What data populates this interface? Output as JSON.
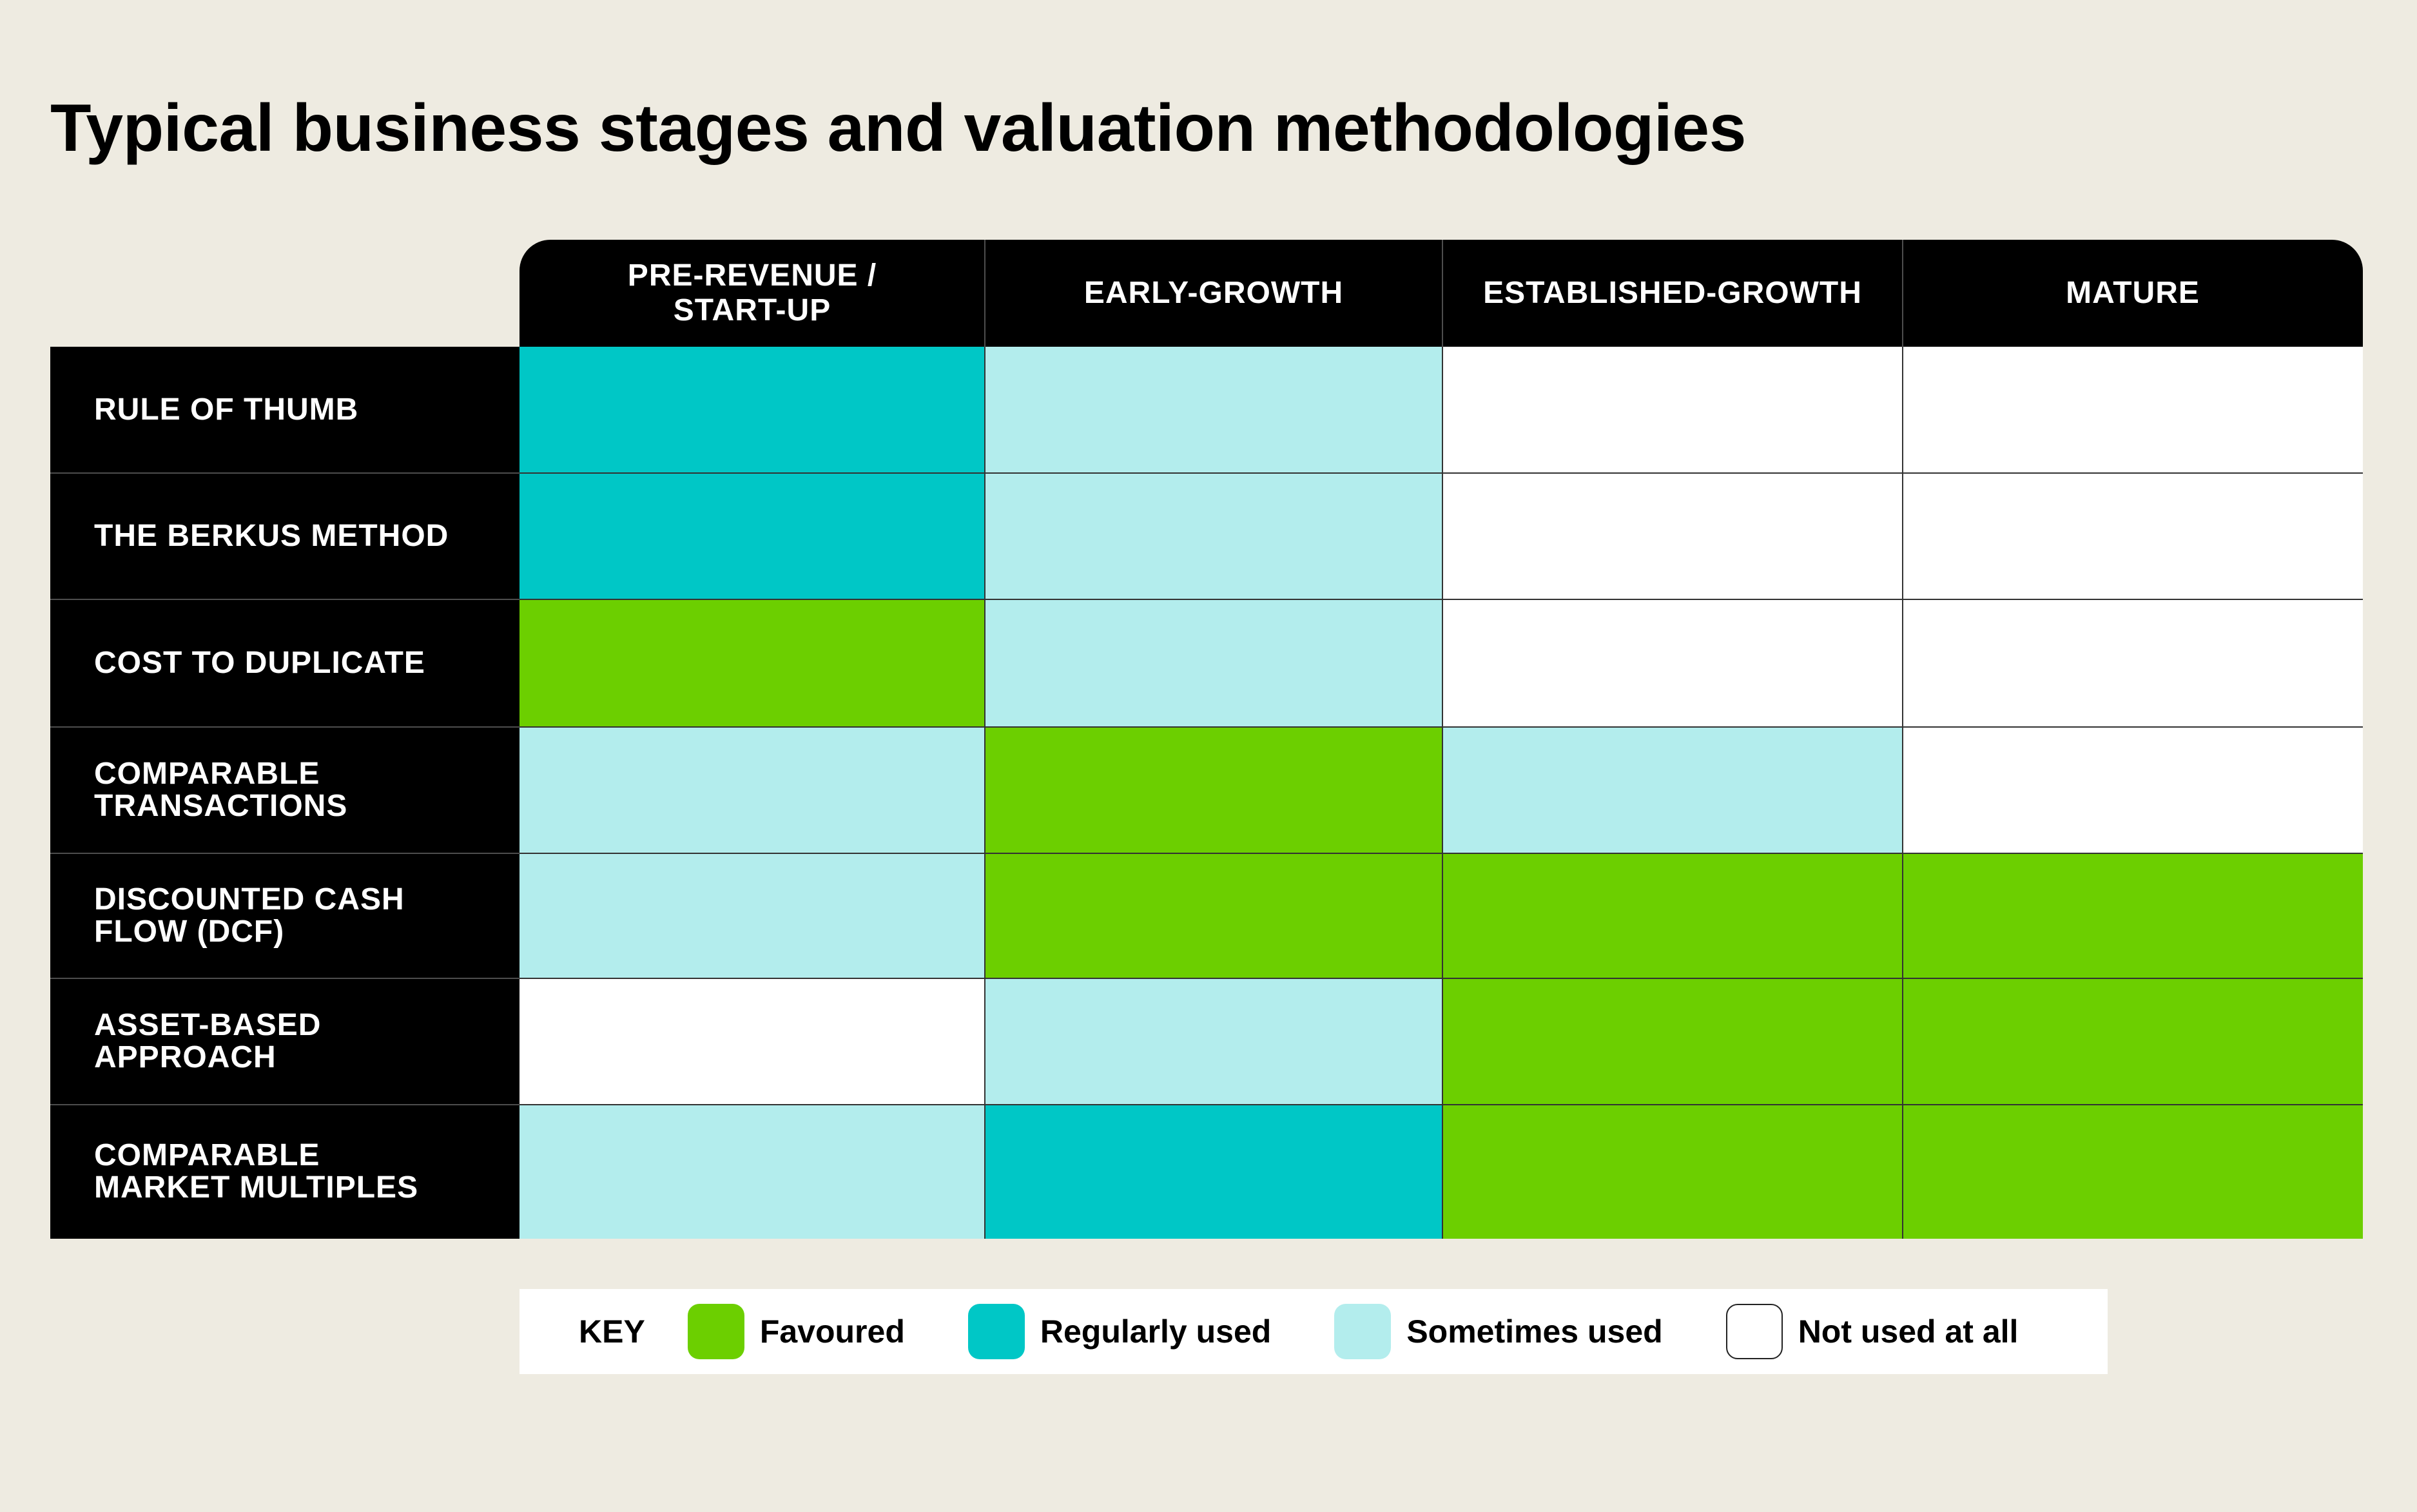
{
  "chart_data": {
    "type": "table",
    "title": "Typical business stages and valuation methodologies",
    "columns": [
      "PRE-REVENUE /\nSTART-UP",
      "EARLY-GROWTH",
      "ESTABLISHED-GROWTH",
      "MATURE"
    ],
    "rows": [
      {
        "label": "RULE OF THUMB",
        "values": [
          "regular",
          "sometimes",
          "none",
          "none"
        ]
      },
      {
        "label": "THE BERKUS METHOD",
        "values": [
          "regular",
          "sometimes",
          "none",
          "none"
        ]
      },
      {
        "label": "COST TO DUPLICATE",
        "values": [
          "favoured",
          "sometimes",
          "none",
          "none"
        ]
      },
      {
        "label": "COMPARABLE\nTRANSACTIONS",
        "values": [
          "sometimes",
          "favoured",
          "sometimes",
          "none"
        ]
      },
      {
        "label": "DISCOUNTED CASH\nFLOW (DCF)",
        "values": [
          "sometimes",
          "favoured",
          "favoured",
          "favoured"
        ]
      },
      {
        "label": "ASSET-BASED\nAPPROACH",
        "values": [
          "none",
          "sometimes",
          "favoured",
          "favoured"
        ]
      },
      {
        "label": "COMPARABLE\nMARKET MULTIPLES",
        "values": [
          "sometimes",
          "regular",
          "favoured",
          "favoured"
        ]
      }
    ],
    "key": {
      "label": "KEY",
      "items": [
        {
          "id": "favoured",
          "name": "Favoured",
          "color": "#6ccf00"
        },
        {
          "id": "regular",
          "name": "Regularly used",
          "color": "#00c7c6"
        },
        {
          "id": "sometimes",
          "name": "Sometimes used",
          "color": "#b3eded"
        },
        {
          "id": "none",
          "name": "Not used at all",
          "color": "#ffffff"
        }
      ]
    }
  }
}
